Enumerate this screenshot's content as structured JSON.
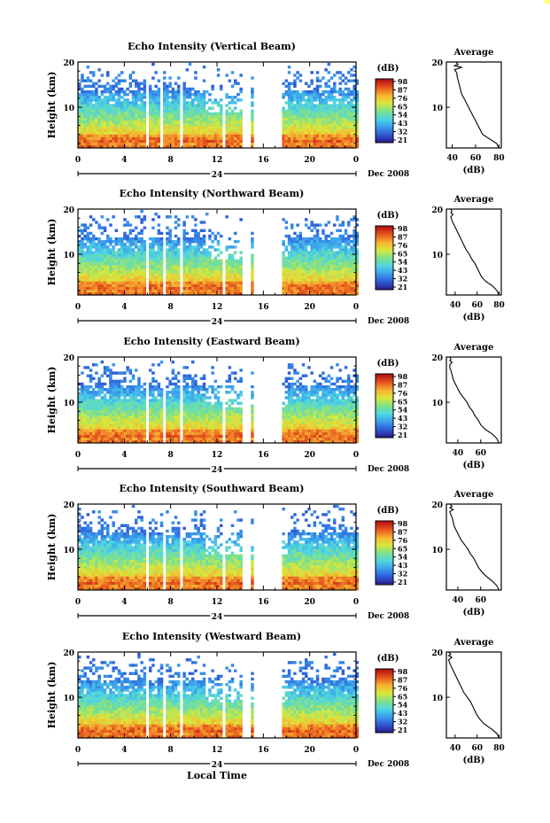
{
  "chart_data": [
    {
      "type": "heatmap",
      "title": "Echo Intensity (Vertical Beam)",
      "ylabel": "Height (km)",
      "x_ticks": [
        "0",
        "4",
        "8",
        "12",
        "16",
        "20",
        "0"
      ],
      "date_marker": "24",
      "date_label": "Dec 2008",
      "ylim": [
        1,
        20
      ],
      "y_ticks": [
        "20",
        "10"
      ],
      "colorbar": {
        "label": "(dB)",
        "ticks": [
          "98",
          "87",
          "76",
          "65",
          "54",
          "43",
          "32",
          "21"
        ]
      },
      "average": {
        "title": "Average",
        "xlabel": "(dB)",
        "x_ticks": [
          "40",
          "60",
          "80"
        ],
        "xlim": [
          35,
          82
        ],
        "y_ticks": [
          "20",
          "10"
        ],
        "profile_x": [
          80,
          78,
          72,
          66,
          64,
          62,
          60,
          58,
          56,
          54,
          52,
          50,
          48,
          47,
          46,
          45,
          44,
          44,
          42,
          48,
          42,
          45,
          43
        ],
        "profile_y": [
          1,
          2,
          3,
          4,
          5,
          6,
          7,
          8,
          9,
          10,
          11,
          12,
          13,
          14,
          15,
          16,
          17,
          17.6,
          18.3,
          18.8,
          19.2,
          19.5,
          20
        ]
      },
      "data_gaps_hours": [
        [
          5.8,
          6.1
        ],
        [
          7.2,
          7.4
        ],
        [
          8.8,
          9.0
        ],
        [
          10.9,
          11.1
        ],
        [
          12.5,
          12.7
        ],
        [
          14.3,
          15.0
        ],
        [
          15.1,
          17.0
        ],
        [
          17.2,
          17.5
        ]
      ]
    },
    {
      "type": "heatmap",
      "title": "Echo Intensity (Northward Beam)",
      "ylabel": "Height (km)",
      "x_ticks": [
        "0",
        "4",
        "8",
        "12",
        "16",
        "20",
        "0"
      ],
      "date_marker": "24",
      "date_label": "Dec 2008",
      "ylim": [
        1,
        20
      ],
      "y_ticks": [
        "20",
        "10"
      ],
      "colorbar": {
        "label": "(dB)",
        "ticks": [
          "98",
          "87",
          "76",
          "65",
          "54",
          "43",
          "32",
          "21"
        ]
      },
      "average": {
        "title": "Average",
        "xlabel": "(dB)",
        "x_ticks": [
          "40",
          "60",
          "80"
        ],
        "xlim": [
          32,
          82
        ],
        "y_ticks": [
          "20",
          "10"
        ],
        "profile_x": [
          80,
          78,
          74,
          68,
          64,
          62,
          60,
          58,
          55,
          53,
          50,
          48,
          46,
          44,
          42,
          40,
          38,
          37,
          36,
          38,
          36,
          37,
          36
        ],
        "profile_y": [
          1,
          2,
          3,
          4,
          5,
          6,
          7,
          8,
          9,
          10,
          11,
          12,
          13,
          14,
          15,
          16,
          17,
          17.6,
          18.3,
          18.8,
          19.2,
          19.5,
          20
        ]
      },
      "data_gaps_hours": [
        [
          5.9,
          6.1
        ],
        [
          7.3,
          7.5
        ],
        [
          8.9,
          9.1
        ],
        [
          10.9,
          11.1
        ],
        [
          12.5,
          12.7
        ],
        [
          14.3,
          15.0
        ],
        [
          15.1,
          17.0
        ],
        [
          17.2,
          17.5
        ]
      ]
    },
    {
      "type": "heatmap",
      "title": "Echo Intensity (Eastward Beam)",
      "ylabel": "Height (km)",
      "x_ticks": [
        "0",
        "4",
        "8",
        "12",
        "16",
        "20",
        "0"
      ],
      "date_marker": "24",
      "date_label": "Dec 2008",
      "ylim": [
        1,
        20
      ],
      "y_ticks": [
        "20",
        "10"
      ],
      "colorbar": {
        "label": "(dB)",
        "ticks": [
          "98",
          "87",
          "76",
          "65",
          "54",
          "43",
          "32",
          "21"
        ]
      },
      "average": {
        "title": "Average",
        "xlabel": "(dB)",
        "x_ticks": [
          "40",
          "60"
        ],
        "xlim": [
          30,
          78
        ],
        "y_ticks": [
          "20",
          "10"
        ],
        "profile_x": [
          76,
          74,
          70,
          64,
          60,
          58,
          55,
          53,
          50,
          48,
          45,
          42,
          40,
          38,
          36,
          35,
          34,
          33,
          33,
          35,
          33,
          34,
          33
        ],
        "profile_y": [
          1,
          2,
          3,
          4,
          5,
          6,
          7,
          8,
          9,
          10,
          11,
          12,
          13,
          14,
          15,
          16,
          17,
          17.6,
          18.3,
          18.8,
          19.2,
          19.5,
          20
        ]
      },
      "data_gaps_hours": [
        [
          5.9,
          6.1
        ],
        [
          7.3,
          7.5
        ],
        [
          8.9,
          9.1
        ],
        [
          10.9,
          11.1
        ],
        [
          12.5,
          12.7
        ],
        [
          14.3,
          15.0
        ],
        [
          15.1,
          17.0
        ],
        [
          17.2,
          17.5
        ]
      ]
    },
    {
      "type": "heatmap",
      "title": "Echo Intensity (Southward Beam)",
      "ylabel": "Height (km)",
      "x_ticks": [
        "0",
        "4",
        "8",
        "12",
        "16",
        "20",
        "0"
      ],
      "date_marker": "24",
      "date_label": "Dec 2008",
      "ylim": [
        1,
        20
      ],
      "y_ticks": [
        "20",
        "10"
      ],
      "colorbar": {
        "label": "(dB)",
        "ticks": [
          "98",
          "87",
          "76",
          "65",
          "54",
          "43",
          "32",
          "21"
        ]
      },
      "average": {
        "title": "Average",
        "xlabel": "(dB)",
        "x_ticks": [
          "40",
          "60"
        ],
        "xlim": [
          30,
          78
        ],
        "y_ticks": [
          "20",
          "10"
        ],
        "profile_x": [
          76,
          74,
          70,
          65,
          61,
          58,
          56,
          54,
          51,
          49,
          46,
          43,
          41,
          39,
          37,
          36,
          35,
          34,
          33,
          36,
          33,
          35,
          33
        ],
        "profile_y": [
          1,
          2,
          3,
          4,
          5,
          6,
          7,
          8,
          9,
          10,
          11,
          12,
          13,
          14,
          15,
          16,
          17,
          17.6,
          18.3,
          18.8,
          19.2,
          19.5,
          20
        ]
      },
      "data_gaps_hours": [
        [
          5.9,
          6.1
        ],
        [
          7.3,
          7.5
        ],
        [
          8.9,
          9.1
        ],
        [
          10.9,
          11.1
        ],
        [
          12.5,
          12.7
        ],
        [
          14.3,
          15.0
        ],
        [
          15.1,
          17.0
        ],
        [
          17.2,
          17.5
        ]
      ]
    },
    {
      "type": "heatmap",
      "title": "Echo Intensity (Westward Beam)",
      "ylabel": "Height (km)",
      "x_ticks": [
        "0",
        "4",
        "8",
        "12",
        "16",
        "20",
        "0"
      ],
      "date_marker": "24",
      "date_label": "Dec 2008",
      "xlabel": "Local Time",
      "ylim": [
        1,
        20
      ],
      "y_ticks": [
        "20",
        "10"
      ],
      "colorbar": {
        "label": "(dB)",
        "ticks": [
          "98",
          "87",
          "76",
          "65",
          "54",
          "43",
          "32",
          "21"
        ]
      },
      "average": {
        "title": "Average",
        "xlabel": "(dB)",
        "x_ticks": [
          "40",
          "60",
          "80"
        ],
        "xlim": [
          32,
          82
        ],
        "y_ticks": [
          "20",
          "10"
        ],
        "profile_x": [
          80,
          78,
          73,
          67,
          63,
          60,
          58,
          56,
          54,
          51,
          48,
          46,
          44,
          42,
          40,
          38,
          36,
          35,
          34,
          37,
          34,
          36,
          34
        ],
        "profile_y": [
          1,
          2,
          3,
          4,
          5,
          6,
          7,
          8,
          9,
          10,
          11,
          12,
          13,
          14,
          15,
          16,
          17,
          17.6,
          18.3,
          18.8,
          19.2,
          19.5,
          20
        ]
      },
      "data_gaps_hours": [
        [
          5.9,
          6.1
        ],
        [
          7.3,
          7.5
        ],
        [
          8.9,
          9.1
        ],
        [
          10.9,
          11.1
        ],
        [
          12.5,
          12.7
        ],
        [
          14.3,
          15.0
        ],
        [
          15.1,
          17.0
        ],
        [
          17.2,
          17.5
        ]
      ]
    }
  ],
  "colors": {
    "scale": [
      "#2a1f8f",
      "#2f5cd6",
      "#3aa0ee",
      "#4fd6e0",
      "#7ee08a",
      "#d8e83a",
      "#f7b531",
      "#e85a1f",
      "#b61414"
    ],
    "axis": "#000000",
    "background": "#ffffff"
  }
}
